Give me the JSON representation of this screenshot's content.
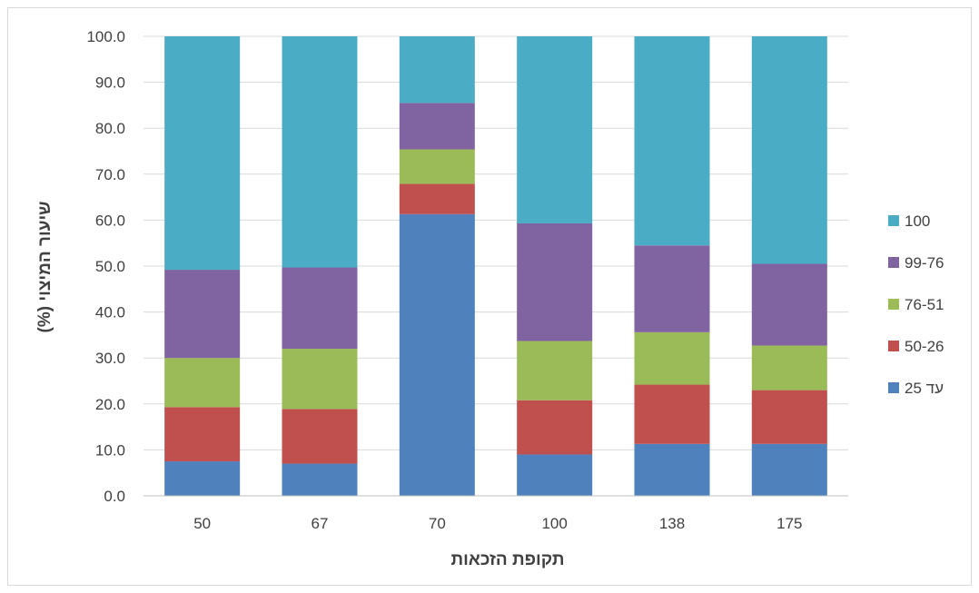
{
  "chart_data": {
    "type": "bar",
    "stacked": true,
    "title": "",
    "xlabel": "תקופת הזכאות",
    "ylabel": "שיעור המיצוי (%)",
    "ylim": [
      0,
      100
    ],
    "ytick_step": 10,
    "ytick_labels": [
      "0.0",
      "10.0",
      "20.0",
      "30.0",
      "40.0",
      "50.0",
      "60.0",
      "70.0",
      "80.0",
      "90.0",
      "100.0"
    ],
    "grid": true,
    "legend_position": "right",
    "categories": [
      "50",
      "67",
      "70",
      "100",
      "138",
      "175"
    ],
    "series": [
      {
        "name": "עד 25",
        "color": "#4f81bd",
        "values": [
          7.5,
          7.0,
          61.3,
          9.0,
          11.3,
          11.3
        ]
      },
      {
        "name": "50-26",
        "color": "#c0504d",
        "values": [
          11.8,
          11.9,
          6.6,
          11.8,
          12.9,
          11.7
        ]
      },
      {
        "name": "76-51",
        "color": "#9bbb59",
        "values": [
          10.7,
          13.1,
          7.5,
          12.9,
          11.4,
          9.7
        ]
      },
      {
        "name": "99-76",
        "color": "#8064a2",
        "values": [
          19.2,
          17.7,
          10.1,
          25.6,
          18.9,
          17.8
        ]
      },
      {
        "name": "100",
        "color": "#4bacc6",
        "values": [
          50.8,
          50.3,
          14.5,
          40.7,
          45.5,
          49.5
        ]
      }
    ]
  }
}
